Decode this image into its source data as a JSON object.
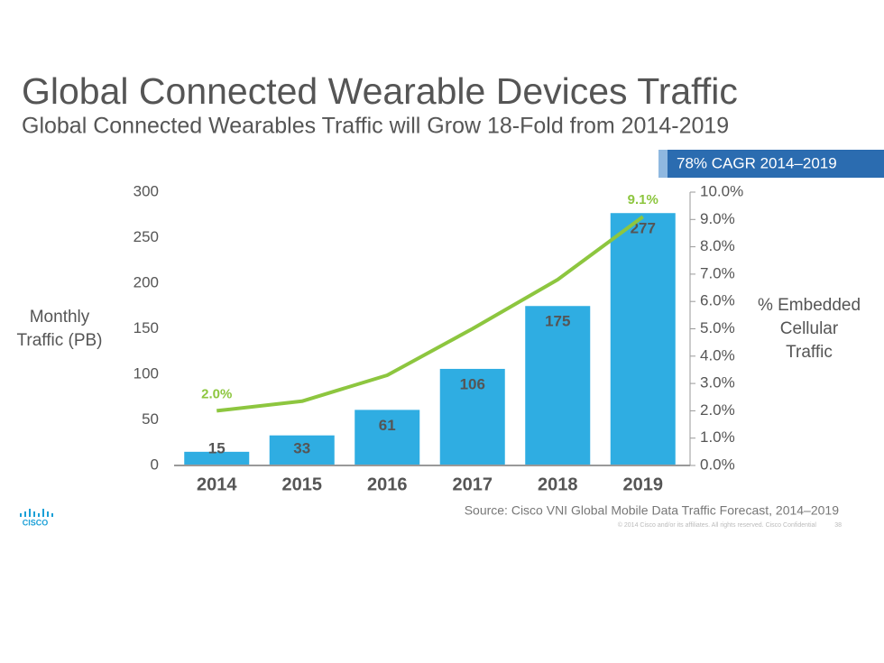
{
  "chart_data": {
    "type": "bar",
    "title": "Global Connected Wearable Devices Traffic",
    "subtitle": "Global Connected Wearables Traffic will Grow 18-Fold from 2014-2019",
    "badge": "78% CAGR 2014–2019",
    "ylabel": [
      "Monthly",
      "Traffic (PB)"
    ],
    "y2label": [
      "% Embedded",
      "Cellular",
      "Traffic"
    ],
    "categories": [
      "2014",
      "2015",
      "2016",
      "2017",
      "2018",
      "2019"
    ],
    "series": [
      {
        "type": "bar",
        "color": "#2fade2",
        "values": [
          15,
          33,
          61,
          106,
          175,
          277
        ]
      },
      {
        "type": "line",
        "axis": "y2",
        "color": "#8dc63f",
        "values": [
          2.0,
          2.35,
          3.3,
          5.0,
          6.8,
          9.1
        ],
        "value_labels": [
          "2.0%",
          null,
          null,
          null,
          null,
          "9.1%"
        ]
      }
    ],
    "ylim": [
      0,
      300
    ],
    "yticks": [
      0,
      50,
      100,
      150,
      200,
      250,
      300
    ],
    "y2lim": [
      0,
      10
    ],
    "y2ticks": [
      {
        "value": 0,
        "label": "0.0%"
      },
      {
        "value": 1,
        "label": "1.0%"
      },
      {
        "value": 2,
        "label": "2.0%"
      },
      {
        "value": 3,
        "label": "3.0%"
      },
      {
        "value": 4,
        "label": "4.0%"
      },
      {
        "value": 5,
        "label": "5.0%"
      },
      {
        "value": 6,
        "label": "6.0%"
      },
      {
        "value": 7,
        "label": "7.0%"
      },
      {
        "value": 8,
        "label": "8.0%"
      },
      {
        "value": 9,
        "label": "9.0%"
      },
      {
        "value": 10,
        "label": "10.0%"
      }
    ],
    "source": "Source: Cisco VNI Global Mobile Data Traffic Forecast, 2014–2019",
    "footer": "© 2014  Cisco and/or its affiliates. All rights reserved.   Cisco Confidential",
    "page": "38",
    "logo": "CISCO"
  }
}
